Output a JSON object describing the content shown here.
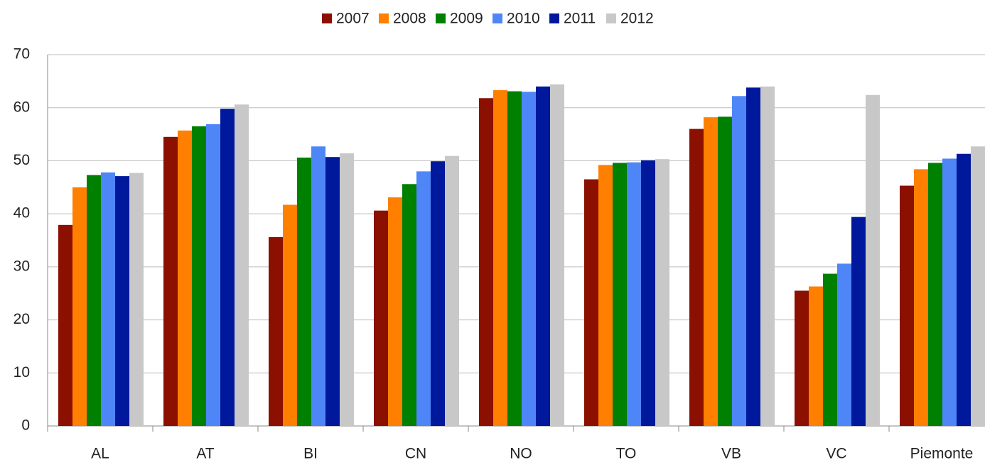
{
  "chart_data": {
    "type": "bar",
    "categories": [
      "AL",
      "AT",
      "BI",
      "CN",
      "NO",
      "TO",
      "VB",
      "VC",
      "Piemonte"
    ],
    "series": [
      {
        "name": "2007",
        "color": "#8b1000",
        "values": [
          37.9,
          54.5,
          35.6,
          40.6,
          61.8,
          46.5,
          56.0,
          25.5,
          45.3
        ]
      },
      {
        "name": "2008",
        "color": "#ff7f00",
        "values": [
          45.0,
          55.7,
          41.7,
          43.1,
          63.3,
          49.2,
          58.2,
          26.3,
          48.4
        ]
      },
      {
        "name": "2009",
        "color": "#008000",
        "values": [
          47.3,
          56.5,
          50.6,
          45.6,
          63.1,
          49.6,
          58.3,
          28.7,
          49.6
        ]
      },
      {
        "name": "2010",
        "color": "#4f86f7",
        "values": [
          47.8,
          56.9,
          52.7,
          48.0,
          63.0,
          49.7,
          62.2,
          30.6,
          50.4
        ]
      },
      {
        "name": "2011",
        "color": "#00189c",
        "values": [
          47.1,
          59.8,
          50.7,
          49.9,
          64.0,
          50.1,
          63.8,
          39.4,
          51.3
        ]
      },
      {
        "name": "2012",
        "color": "#c8c8c8",
        "values": [
          47.7,
          60.6,
          51.4,
          50.9,
          64.4,
          50.3,
          64.0,
          62.4,
          52.7
        ]
      }
    ],
    "ylim": [
      0,
      70
    ],
    "yticks": [
      0,
      10,
      20,
      30,
      40,
      50,
      60,
      70
    ],
    "grid": true,
    "legend": "top"
  }
}
